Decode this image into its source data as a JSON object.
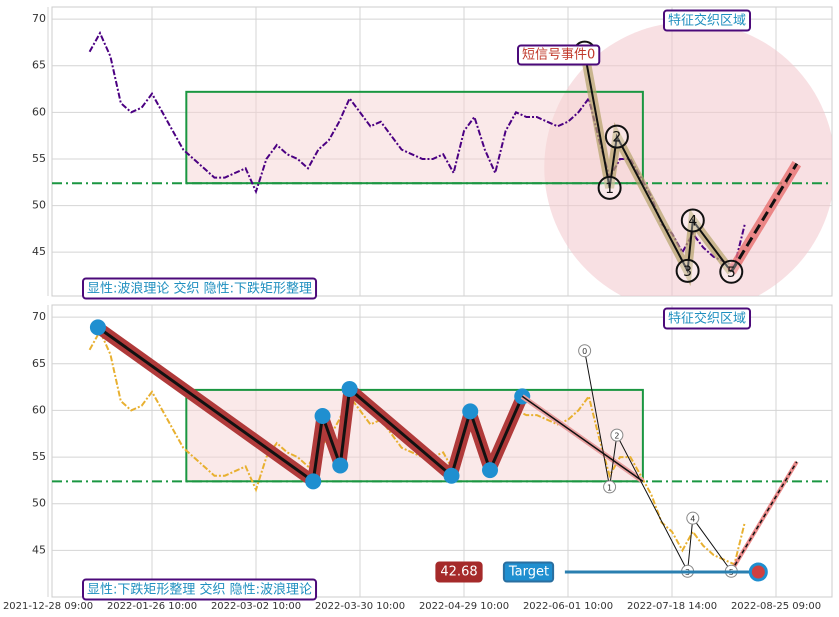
{
  "x_axis": {
    "categories": [
      "2021-12-28 09:00",
      null,
      null,
      null,
      null,
      null,
      null,
      null,
      null,
      null,
      "2022-01-26 10:00",
      null,
      null,
      null,
      null,
      null,
      null,
      null,
      null,
      null,
      "2022-03-02 10:00",
      null,
      null,
      null,
      null,
      null,
      null,
      null,
      null,
      null,
      "2022-03-30 10:00",
      null,
      null,
      null,
      null,
      null,
      null,
      null,
      null,
      null,
      "2022-04-29 10:00",
      null,
      null,
      null,
      null,
      null,
      null,
      null,
      null,
      null,
      "2022-06-01 10:00",
      null,
      null,
      null,
      null,
      null,
      null,
      null,
      null,
      null,
      "2022-07-18 14:00",
      null,
      null,
      null,
      null,
      null,
      null,
      null,
      null,
      null,
      "2022-08-25 09:00",
      null,
      null,
      null,
      null,
      null
    ]
  },
  "chart_data": [
    {
      "type": "line",
      "ylim": [
        40.3,
        71.3
      ],
      "yticks": [
        45,
        50,
        55,
        60,
        65,
        70
      ],
      "grid": true,
      "series": [
        {
          "color": "#4b0082",
          "values": [
            null,
            null,
            null,
            null,
            66.5,
            68.5,
            66,
            61,
            60,
            60.5,
            62,
            60,
            58,
            56,
            55,
            54,
            53,
            53,
            53.5,
            54,
            51.5,
            55,
            56.5,
            55.5,
            55,
            54,
            56,
            57,
            59,
            61.5,
            60,
            58.5,
            59,
            57.5,
            56,
            55.5,
            55,
            55,
            55.5,
            53.5,
            58,
            59.5,
            56,
            53.5,
            58,
            60,
            59.5,
            59.5,
            59,
            58.5,
            59,
            60,
            61.5,
            57,
            53,
            55,
            55,
            53,
            51,
            48,
            47,
            45,
            47,
            45.5,
            44.5,
            44,
            43.5,
            48,
            null,
            null,
            null,
            null,
            null,
            null,
            null,
            null
          ]
        }
      ],
      "box": {
        "x": [
          13.3,
          57.2
        ],
        "y": [
          52.4,
          62.2
        ]
      },
      "support_line": 52.4,
      "highlight": {
        "x": 61.7,
        "y": 54.1,
        "r": 15.6
      },
      "waves": {
        "labels": [
          "0",
          "1",
          "2",
          "3",
          "4",
          "5"
        ],
        "x": [
          51.6,
          54,
          54.7,
          61.5,
          62,
          65.7
        ],
        "y": [
          66.4,
          51.9,
          57.4,
          43.0,
          48.4,
          42.9
        ]
      },
      "projection": {
        "x": 72,
        "y": 54.5
      },
      "annotations": {
        "zone": "特征交织区域",
        "signal": "短信号事件0",
        "note": "显性:波浪理论 交织 隐性:下跌矩形整理"
      }
    },
    {
      "type": "line",
      "ylim": [
        40,
        71.3
      ],
      "yticks": [
        45,
        50,
        55,
        60,
        65,
        70
      ],
      "grid": true,
      "series": [
        {
          "color": "#e8b030",
          "values": [
            null,
            null,
            null,
            null,
            66.5,
            68.5,
            66,
            61,
            60,
            60.5,
            62,
            60,
            58,
            56,
            55,
            54,
            53,
            53,
            53.5,
            54,
            51.5,
            55,
            56.5,
            55.5,
            55,
            54,
            56,
            57,
            59,
            61.5,
            60,
            58.5,
            59,
            57.5,
            56,
            55.5,
            55,
            55,
            55.5,
            53.5,
            58,
            59.5,
            56,
            53.5,
            58,
            60,
            59.5,
            59.5,
            59,
            58.5,
            59,
            60,
            61.5,
            57,
            53,
            55,
            55,
            53,
            51,
            48,
            47,
            45,
            47,
            45.5,
            44.5,
            44,
            43.5,
            48,
            null,
            null,
            null,
            null,
            null,
            null,
            null,
            null
          ]
        }
      ],
      "box": {
        "x": [
          13.3,
          57.2
        ],
        "y": [
          52.4,
          62.2
        ]
      },
      "support_line": 52.4,
      "pattern": {
        "x": [
          4.8,
          25.5,
          26.4,
          28.1,
          29,
          38.8,
          40.6,
          42.5,
          45.6
        ],
        "y": [
          68.9,
          52.4,
          59.4,
          54.1,
          62.3,
          53.0,
          59.9,
          53.6,
          61.5
        ]
      },
      "trend": {
        "x": [
          45.6,
          57.2
        ],
        "y": [
          61.5,
          52.4
        ]
      },
      "waves": {
        "labels": [
          "0",
          "1",
          "2",
          "3",
          "4",
          "5"
        ],
        "x": [
          51.6,
          54,
          54.7,
          61.5,
          62,
          65.7
        ],
        "y": [
          66.4,
          51.8,
          57.35,
          42.76,
          48.45,
          42.76
        ]
      },
      "projection": {
        "x": 72,
        "y": 54.5
      },
      "target": {
        "value": 42.68,
        "label": "Target",
        "x": [
          49.7,
          68.3
        ]
      },
      "annotations": {
        "zone": "特征交织区域",
        "note": "显性:下跌矩形整理 交织 隐性:波浪理论"
      }
    }
  ]
}
